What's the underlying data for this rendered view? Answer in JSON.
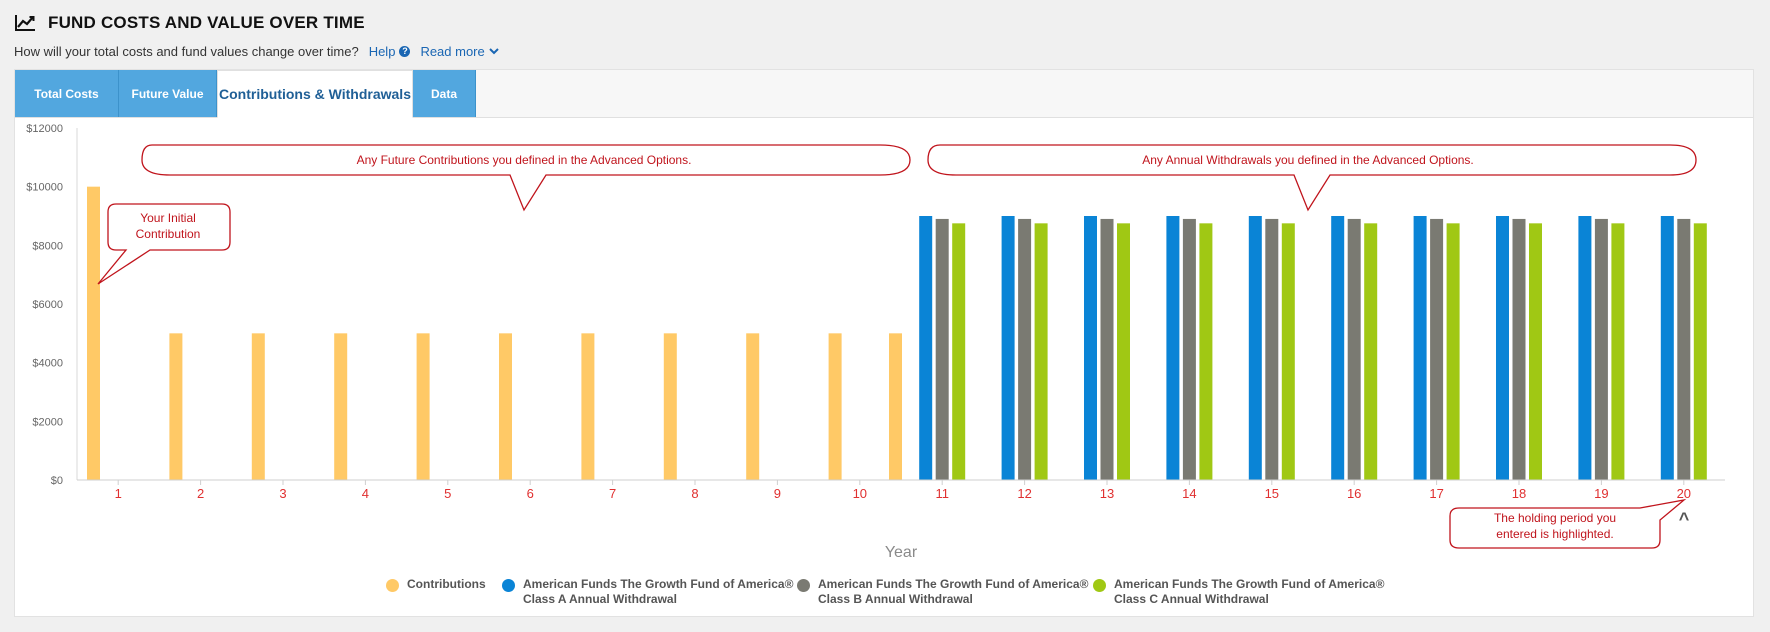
{
  "header": {
    "title": "FUND COSTS AND VALUE OVER TIME",
    "subtitle": "How will your total costs and fund values change over time?",
    "help_label": "Help",
    "read_more_label": "Read more",
    "title_icon": "line-chart-icon",
    "help_icon": "question-circle-icon",
    "read_more_icon": "chevron-down-icon"
  },
  "tabs": [
    {
      "label": "Total Costs",
      "active": false
    },
    {
      "label": "Future Value",
      "active": false
    },
    {
      "label": "Contributions & Withdrawals",
      "active": true
    },
    {
      "label": "Data",
      "active": false
    }
  ],
  "colors": {
    "accent_tab": "#52a7df",
    "contributions": "#ffc966",
    "class_a": "#0a84d6",
    "class_b": "#7a7a72",
    "class_c": "#a0c814",
    "callout_border": "#c0141c",
    "callout_text": "#c0141c",
    "year_label": "#e03030"
  },
  "chart_data": {
    "type": "bar",
    "xlabel": "Year",
    "ylabel": "",
    "ylim": [
      0,
      12000
    ],
    "yticks": [
      "$0",
      "$2000",
      "$4000",
      "$6000",
      "$8000",
      "$10000",
      "$12000"
    ],
    "categories": [
      "1",
      "2",
      "3",
      "4",
      "5",
      "6",
      "7",
      "8",
      "9",
      "10",
      "11",
      "12",
      "13",
      "14",
      "15",
      "16",
      "17",
      "18",
      "19",
      "20"
    ],
    "series": [
      {
        "name": "Contributions",
        "values": [
          10000,
          5000,
          5000,
          5000,
          5000,
          5000,
          5000,
          5000,
          5000,
          5000,
          5000,
          0,
          0,
          0,
          0,
          0,
          0,
          0,
          0,
          0
        ]
      },
      {
        "name": "American Funds The Growth Fund of America® Class A Annual Withdrawal",
        "values": [
          0,
          0,
          0,
          0,
          0,
          0,
          0,
          0,
          0,
          0,
          9000,
          9000,
          9000,
          9000,
          9000,
          9000,
          9000,
          9000,
          9000,
          9000
        ]
      },
      {
        "name": "American Funds The Growth Fund of America® Class B Annual Withdrawal",
        "values": [
          0,
          0,
          0,
          0,
          0,
          0,
          0,
          0,
          0,
          0,
          8900,
          8900,
          8900,
          8900,
          8900,
          8900,
          8900,
          8900,
          8900,
          8900
        ]
      },
      {
        "name": "American Funds The Growth Fund of America® Class C Annual Withdrawal",
        "values": [
          0,
          0,
          0,
          0,
          0,
          0,
          0,
          0,
          0,
          0,
          8750,
          8750,
          8750,
          8750,
          8750,
          8750,
          8750,
          8750,
          8750,
          8750
        ]
      }
    ],
    "legend_position": "bottom",
    "grid": false,
    "highlighted_category": "20"
  },
  "legend": [
    {
      "line1": "Contributions",
      "line2": ""
    },
    {
      "line1": "American Funds The Growth Fund of America®",
      "line2": "Class A Annual Withdrawal"
    },
    {
      "line1": "American Funds The Growth Fund of America®",
      "line2": "Class B Annual Withdrawal"
    },
    {
      "line1": "American Funds The Growth Fund of America®",
      "line2": "Class C Annual Withdrawal"
    }
  ],
  "callouts": {
    "initial": [
      "Your Initial",
      "Contribution"
    ],
    "future": "Any Future Contributions you defined in the Advanced Options.",
    "withdrawals": "Any Annual Withdrawals you defined in the Advanced Options.",
    "holding": [
      "The holding period you",
      "entered is highlighted."
    ]
  },
  "highlight_marker": "^"
}
